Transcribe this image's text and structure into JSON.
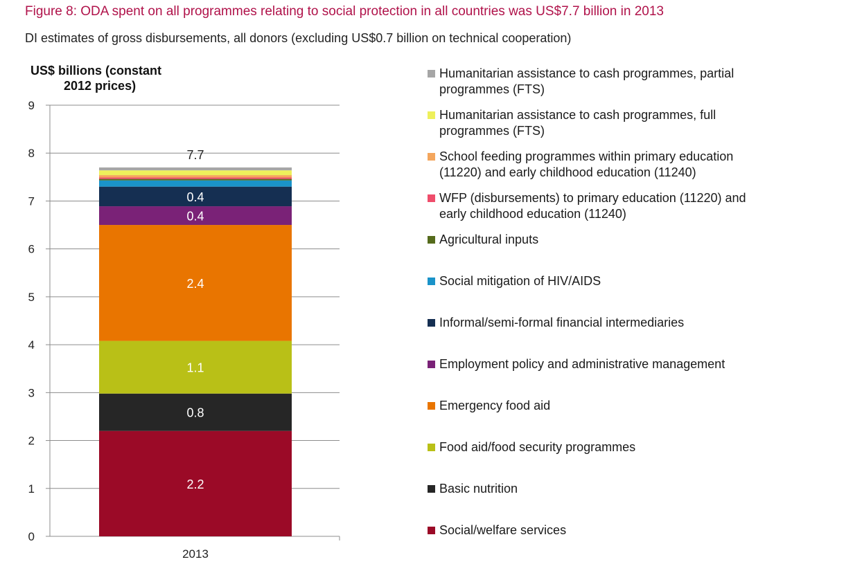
{
  "title": "Figure 8: ODA spent on all programmes relating to social protection in all countries was US$7.7 billion in 2013",
  "subtitle": "DI estimates of gross disbursements, all donors (excluding US$0.7 billion on technical cooperation)",
  "chart_data": {
    "type": "bar",
    "stacked": true,
    "categories": [
      "2013"
    ],
    "ylabel": [
      "US$ billions (constant",
      "2012 prices)"
    ],
    "ylim": [
      0,
      9
    ],
    "yticks": [
      "0",
      "1",
      "2",
      "3",
      "4",
      "5",
      "6",
      "7",
      "8",
      "9"
    ],
    "grid": true,
    "legend_position": "right",
    "total_label": "7.7",
    "series": [
      {
        "name": "Social/welfare services",
        "values": [
          2.2
        ],
        "color": "#9b0a27",
        "label": "2.2"
      },
      {
        "name": "Basic nutrition",
        "values": [
          0.78
        ],
        "color": "#262626",
        "label": "0.8"
      },
      {
        "name": "Food aid/food security programmes",
        "values": [
          1.1
        ],
        "color": "#b9c017",
        "label": "1.1"
      },
      {
        "name": "Emergency food aid",
        "values": [
          2.42
        ],
        "color": "#e97500",
        "label": "2.4"
      },
      {
        "name": "Employment policy and administrative management",
        "values": [
          0.39
        ],
        "color": "#7a2277",
        "label": "0.4"
      },
      {
        "name": "Informal/semi-formal financial intermediaries",
        "values": [
          0.41
        ],
        "color": "#152f52",
        "label": "0.4"
      },
      {
        "name": "Social mitigation of HIV/AIDS",
        "values": [
          0.13
        ],
        "color": "#1a93c9",
        "label": ""
      },
      {
        "name": "Agricultural inputs",
        "values": [
          0.03
        ],
        "color": "#556b1c",
        "label": ""
      },
      {
        "name": "WFP (disbursements) to primary education (11220) and early childhood education (11240)",
        "values": [
          0.03
        ],
        "color": "#ef4d6b",
        "label": ""
      },
      {
        "name": "School feeding programmes within primary education (11220) and early childhood education (11240)",
        "values": [
          0.05
        ],
        "color": "#f4a65d",
        "label": ""
      },
      {
        "name": "Humanitarian assistance to cash programmes, full programmes (FTS)",
        "values": [
          0.1
        ],
        "color": "#eef05b",
        "label": ""
      },
      {
        "name": "Humanitarian assistance to cash programmes, partial programmes (FTS)",
        "values": [
          0.06
        ],
        "color": "#a6a6a6",
        "label": ""
      }
    ]
  },
  "legend": [
    {
      "lines": [
        "Humanitarian assistance to cash programmes, partial",
        "programmes (FTS)"
      ],
      "color": "#a6a6a6"
    },
    {
      "lines": [
        "Humanitarian assistance to cash programmes, full",
        "programmes (FTS)"
      ],
      "color": "#eef05b"
    },
    {
      "lines": [
        "School feeding programmes within primary education",
        "(11220) and early childhood education (11240)"
      ],
      "color": "#f4a65d"
    },
    {
      "lines": [
        "WFP (disbursements) to primary education (11220) and",
        "early childhood education (11240)"
      ],
      "color": "#ef4d6b"
    },
    {
      "lines": [
        "Agricultural inputs"
      ],
      "color": "#556b1c"
    },
    {
      "lines": [
        "Social mitigation of HIV/AIDS"
      ],
      "color": "#1a93c9"
    },
    {
      "lines": [
        "Informal/semi-formal financial intermediaries"
      ],
      "color": "#152f52"
    },
    {
      "lines": [
        "Employment policy and administrative management"
      ],
      "color": "#7a2277"
    },
    {
      "lines": [
        "Emergency food aid"
      ],
      "color": "#e97500"
    },
    {
      "lines": [
        "Food aid/food security programmes"
      ],
      "color": "#b9c017"
    },
    {
      "lines": [
        "Basic nutrition"
      ],
      "color": "#262626"
    },
    {
      "lines": [
        "Social/welfare services"
      ],
      "color": "#9b0a27"
    }
  ]
}
